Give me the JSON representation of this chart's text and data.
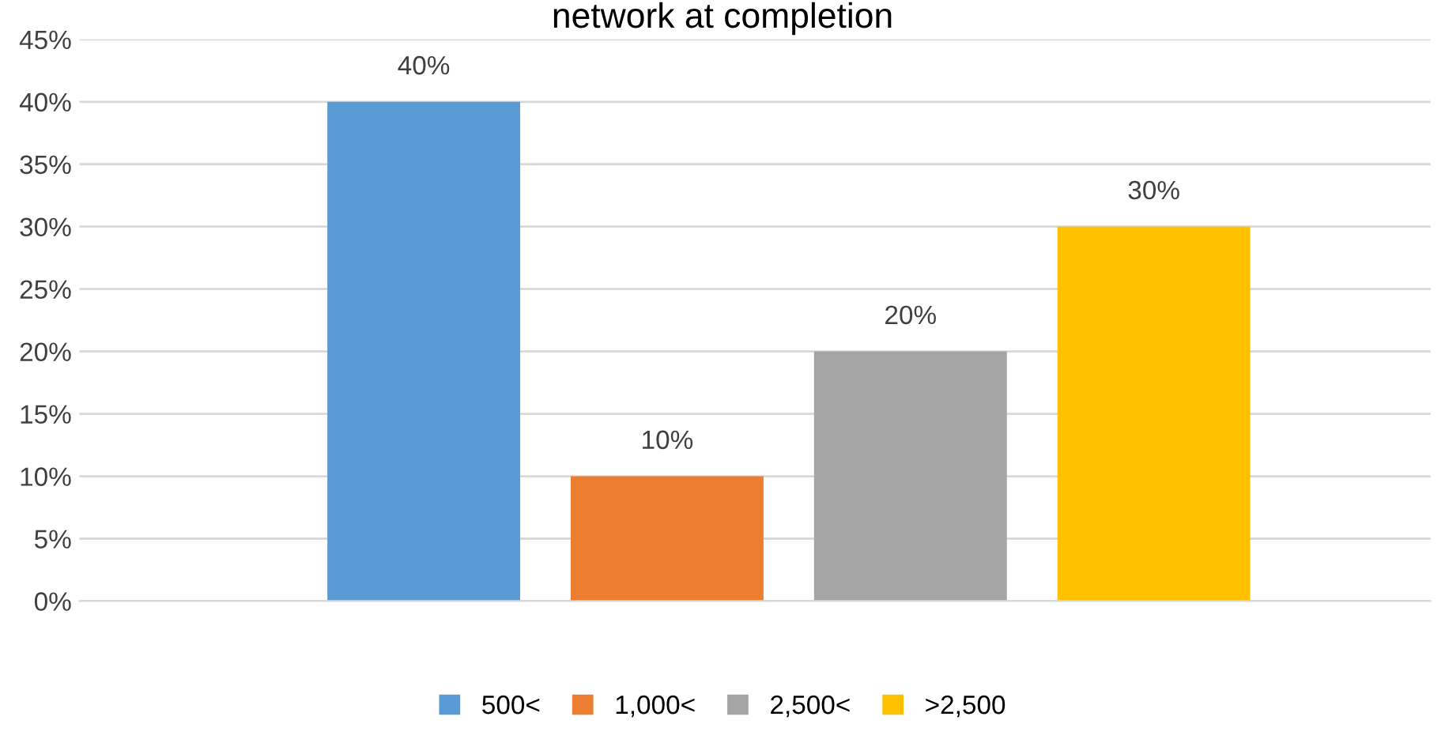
{
  "chart_data": {
    "type": "bar",
    "title": "network at completion",
    "categories": [
      null
    ],
    "series": [
      {
        "name": "500<",
        "color": "#5b9bd5",
        "values": [
          40
        ],
        "value_labels": [
          "40%"
        ]
      },
      {
        "name": "1,000<",
        "color": "#ed7d31",
        "values": [
          10
        ],
        "value_labels": [
          "10%"
        ]
      },
      {
        "name": "2,500<",
        "color": "#a5a5a5",
        "values": [
          20
        ],
        "value_labels": [
          "20%"
        ]
      },
      {
        "name": ">2,500",
        "color": "#ffc000",
        "values": [
          30
        ],
        "value_labels": [
          "30%"
        ]
      }
    ],
    "ylim": [
      0,
      45
    ],
    "yticks": [
      {
        "value": 0,
        "label": "0%"
      },
      {
        "value": 5,
        "label": "5%"
      },
      {
        "value": 10,
        "label": "10%"
      },
      {
        "value": 15,
        "label": "15%"
      },
      {
        "value": 20,
        "label": "20%"
      },
      {
        "value": 25,
        "label": "25%"
      },
      {
        "value": 30,
        "label": "30%"
      },
      {
        "value": 35,
        "label": "35%"
      },
      {
        "value": 40,
        "label": "40%"
      },
      {
        "value": 45,
        "label": "45%"
      }
    ],
    "grid": "y",
    "legend": "bottom"
  }
}
